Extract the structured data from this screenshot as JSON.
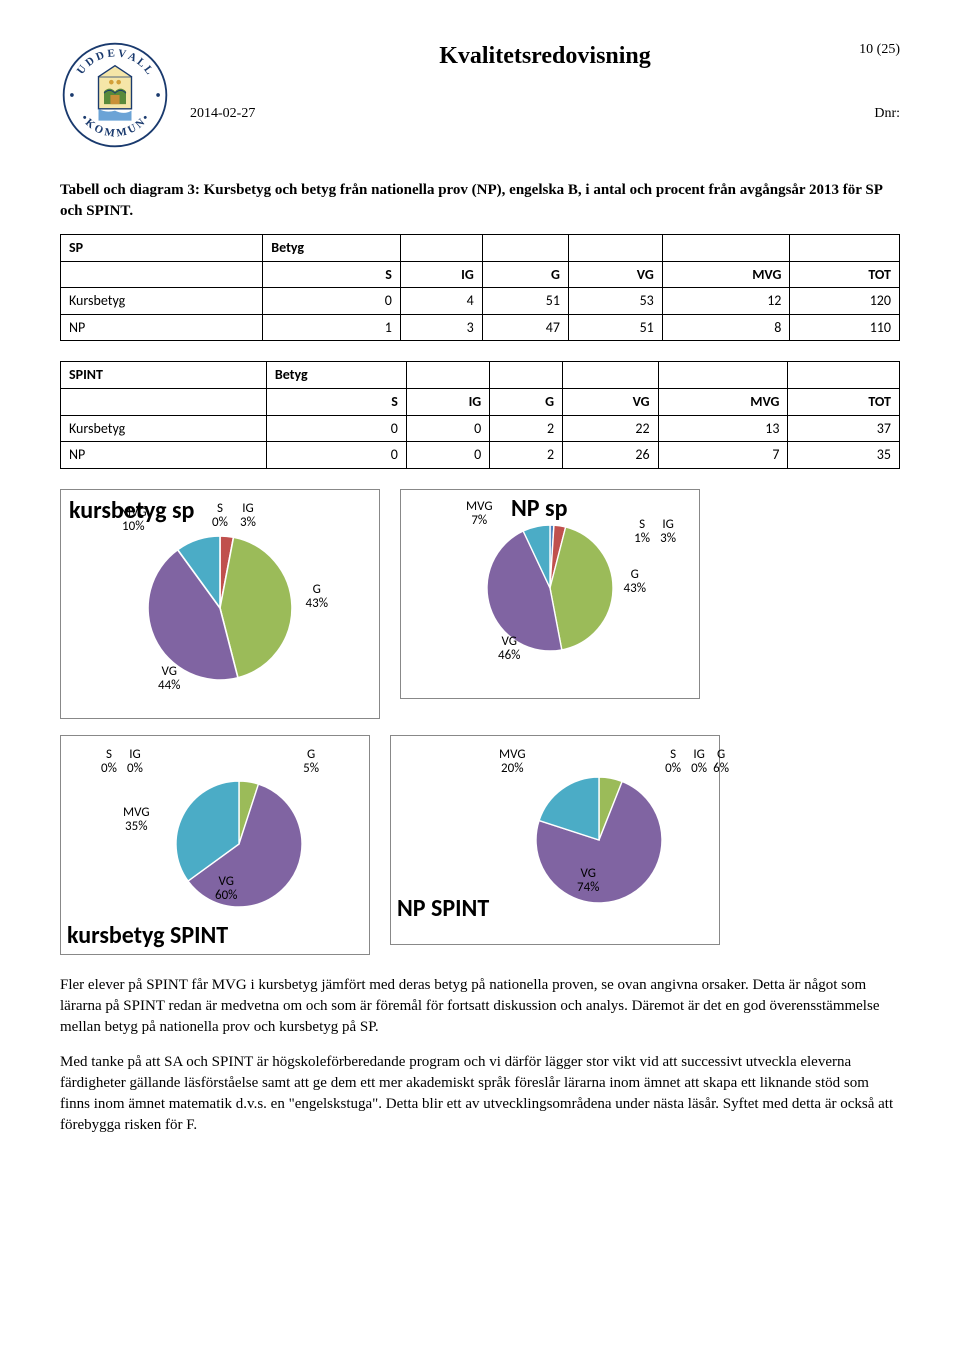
{
  "header": {
    "main_title": "Kvalitetsredovisning",
    "page_indicator": "10 (25)",
    "date": "2014-02-27",
    "dnr": "Dnr:"
  },
  "caption": "Tabell och diagram 3: Kursbetyg och betyg från nationella prov (NP), engelska B, i antal och procent från avgångsår 2013 för SP och SPINT.",
  "table_sp": {
    "group": "SP",
    "group2": "Betyg",
    "cols": [
      "S",
      "IG",
      "G",
      "VG",
      "MVG",
      "TOT"
    ],
    "rows": [
      {
        "label": "Kursbetyg",
        "vals": [
          0,
          4,
          51,
          53,
          12,
          120
        ]
      },
      {
        "label": "NP",
        "vals": [
          1,
          3,
          47,
          51,
          8,
          110
        ]
      }
    ]
  },
  "table_spint": {
    "group": "SPINT",
    "group2": "Betyg",
    "cols": [
      "S",
      "IG",
      "G",
      "VG",
      "MVG",
      "TOT"
    ],
    "rows": [
      {
        "label": "Kursbetyg",
        "vals": [
          0,
          0,
          2,
          22,
          13,
          37
        ]
      },
      {
        "label": "NP",
        "vals": [
          0,
          0,
          2,
          26,
          7,
          35
        ]
      }
    ]
  },
  "colors": {
    "S": "#4f81bd",
    "IG": "#c0504d",
    "G": "#9bbb59",
    "VG": "#8064a2",
    "MVG": "#4bacc6",
    "border": "#ffffff"
  },
  "chart1": {
    "title": "kursbetyg sp",
    "slices": [
      {
        "label": "S",
        "pct": 0,
        "color": "#4f81bd"
      },
      {
        "label": "IG",
        "pct": 3,
        "color": "#c0504d"
      },
      {
        "label": "G",
        "pct": 43,
        "color": "#9bbb59"
      },
      {
        "label": "VG",
        "pct": 44,
        "color": "#8064a2"
      },
      {
        "label": "MVG",
        "pct": 10,
        "color": "#4bacc6"
      }
    ],
    "labels": {
      "mvg": "MVG\n10%",
      "s": "S\n0%",
      "ig": "IG\n3%",
      "g": "G\n43%",
      "vg": "VG\n44%"
    }
  },
  "chart2": {
    "title": "NP sp",
    "slices": [
      {
        "label": "S",
        "pct": 1,
        "color": "#4f81bd"
      },
      {
        "label": "IG",
        "pct": 3,
        "color": "#c0504d"
      },
      {
        "label": "G",
        "pct": 43,
        "color": "#9bbb59"
      },
      {
        "label": "VG",
        "pct": 46,
        "color": "#8064a2"
      },
      {
        "label": "MVG",
        "pct": 7,
        "color": "#4bacc6"
      }
    ],
    "labels": {
      "mvg": "MVG\n7%",
      "s": "S\n1%",
      "ig": "IG\n3%",
      "g": "G\n43%",
      "vg": "VG\n46%"
    }
  },
  "chart3": {
    "title": "kursbetyg SPINT",
    "slices": [
      {
        "label": "S",
        "pct": 0,
        "color": "#4f81bd"
      },
      {
        "label": "IG",
        "pct": 0,
        "color": "#c0504d"
      },
      {
        "label": "G",
        "pct": 5,
        "color": "#9bbb59"
      },
      {
        "label": "VG",
        "pct": 60,
        "color": "#8064a2"
      },
      {
        "label": "MVG",
        "pct": 35,
        "color": "#4bacc6"
      }
    ],
    "labels": {
      "s": "S\n0%",
      "ig": "IG\n0%",
      "g": "G\n5%",
      "mvg": "MVG\n35%",
      "vg": "VG\n60%"
    }
  },
  "chart4": {
    "title": "NP SPINT",
    "slices": [
      {
        "label": "S",
        "pct": 0,
        "color": "#4f81bd"
      },
      {
        "label": "IG",
        "pct": 0,
        "color": "#c0504d"
      },
      {
        "label": "G",
        "pct": 6,
        "color": "#9bbb59"
      },
      {
        "label": "VG",
        "pct": 74,
        "color": "#8064a2"
      },
      {
        "label": "MVG",
        "pct": 20,
        "color": "#4bacc6"
      }
    ],
    "labels": {
      "mvg": "MVG\n20%",
      "s": "S\n0%",
      "ig": "IG\n0%",
      "g": "G\n6%",
      "vg": "VG\n74%"
    }
  },
  "para1": "Fler elever på SPINT får MVG i kursbetyg jämfört med deras betyg på nationella proven, se ovan angivna orsaker. Detta är något som lärarna på SPINT redan är medvetna om och som är föremål för fortsatt diskussion och analys. Däremot är det en god överensstämmelse mellan betyg på nationella prov och kursbetyg på SP.",
  "para2": "Med tanke på att SA och SPINT är högskoleförberedande program och vi därför lägger stor vikt vid att successivt utveckla eleverna färdigheter gällande läsförståelse samt att ge dem ett mer akademiskt språk föreslår lärarna inom ämnet att skapa ett liknande stöd som finns inom ämnet matematik d.v.s. en \"engelskstuga\". Detta blir ett av utvecklingsområdena under nästa läsår. Syftet med detta är också att förebygga risken för F."
}
